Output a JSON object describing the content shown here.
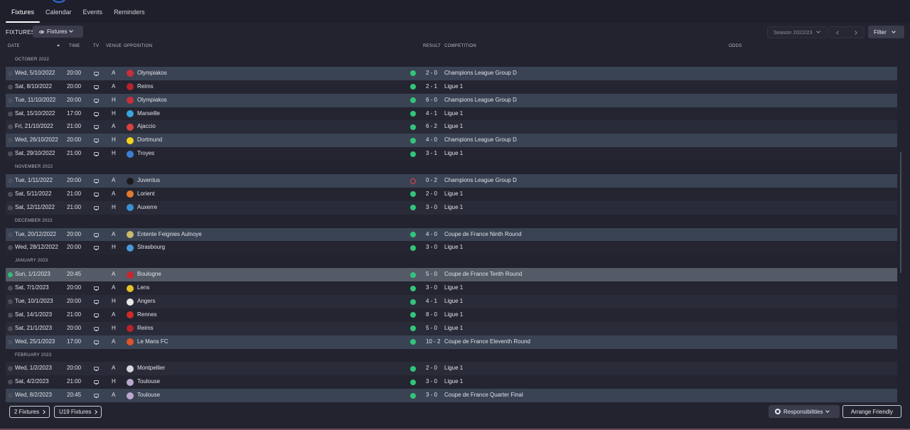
{
  "tabs": [
    {
      "label": "Fixtures",
      "active": true
    },
    {
      "label": "Calendar",
      "active": false
    },
    {
      "label": "Events",
      "active": false
    },
    {
      "label": "Reminders",
      "active": false
    }
  ],
  "toolbar": {
    "page_label": "FIXTURES",
    "view_label": "Fixtures",
    "season_label": "Season 2022/23",
    "filter_label": "Filter"
  },
  "headers": {
    "date": "DATE",
    "time": "TIME",
    "tv": "TV",
    "venue": "VENUE",
    "opposition": "OPPOSITION",
    "result": "RESULT",
    "competition": "COMPETITION",
    "odds": "ODDS"
  },
  "colors": {
    "win": "#33c47a",
    "loss": "#e0444a",
    "accent": "#2f6fd8"
  },
  "months": [
    {
      "label": "OCTOBER 2022",
      "fixtures": [
        {
          "date": "Wed, 5/10/2022",
          "time": "20:00",
          "venue": "A",
          "opposition": "Olympiakos",
          "crest": "#c8303a",
          "outcome": "win",
          "score": "2 - 0",
          "competition": "Champions League Group D",
          "style": "hl"
        },
        {
          "date": "Sat, 8/10/2022",
          "time": "20:00",
          "venue": "A",
          "opposition": "Reims",
          "crest": "#b8222c",
          "outcome": "win",
          "score": "2 - 1",
          "competition": "Ligue 1",
          "style": "even"
        },
        {
          "date": "Tue, 11/10/2022",
          "time": "20:00",
          "venue": "H",
          "opposition": "Olympiakos",
          "crest": "#c8303a",
          "outcome": "win",
          "score": "6 - 0",
          "competition": "Champions League Group D",
          "style": "hl"
        },
        {
          "date": "Sat, 15/10/2022",
          "time": "17:00",
          "venue": "H",
          "opposition": "Marseille",
          "crest": "#3aa3dc",
          "outcome": "win",
          "score": "4 - 1",
          "competition": "Ligue 1",
          "style": "even"
        },
        {
          "date": "Fri, 21/10/2022",
          "time": "21:00",
          "venue": "A",
          "opposition": "Ajaccio",
          "crest": "#d9423a",
          "outcome": "win",
          "score": "6 - 2",
          "competition": "Ligue 1",
          "style": "odd"
        },
        {
          "date": "Wed, 26/10/2022",
          "time": "20:00",
          "venue": "H",
          "opposition": "Dortmund",
          "crest": "#f1d21e",
          "outcome": "win",
          "score": "4 - 0",
          "competition": "Champions League Group D",
          "style": "hl"
        },
        {
          "date": "Sat, 29/10/2022",
          "time": "21:00",
          "venue": "H",
          "opposition": "Troyes",
          "crest": "#3b7fd0",
          "outcome": "win",
          "score": "3 - 1",
          "competition": "Ligue 1",
          "style": "even"
        }
      ]
    },
    {
      "label": "NOVEMBER 2022",
      "fixtures": [
        {
          "date": "Tue, 1/11/2022",
          "time": "20:00",
          "venue": "A",
          "opposition": "Juventus",
          "crest": "#1b1b1b",
          "outcome": "loss",
          "score": "0 - 2",
          "competition": "Champions League Group D",
          "style": "hl"
        },
        {
          "date": "Sat, 5/11/2022",
          "time": "21:00",
          "venue": "A",
          "opposition": "Lorient",
          "crest": "#e27a2d",
          "outcome": "win",
          "score": "2 - 0",
          "competition": "Ligue 1",
          "style": "even"
        },
        {
          "date": "Sat, 12/11/2022",
          "time": "21:00",
          "venue": "H",
          "opposition": "Auxerre",
          "crest": "#3a8fd4",
          "outcome": "win",
          "score": "3 - 0",
          "competition": "Ligue 1",
          "style": "odd"
        }
      ]
    },
    {
      "label": "DECEMBER 2022",
      "fixtures": [
        {
          "date": "Tue, 20/12/2022",
          "time": "20:00",
          "venue": "A",
          "opposition": "Entente Feignies Aulnoye",
          "crest": "#c9b96a",
          "outcome": "win",
          "score": "4 - 0",
          "competition": "Coupe de France Ninth Round",
          "style": "hl"
        },
        {
          "date": "Wed, 28/12/2022",
          "time": "20:00",
          "venue": "H",
          "opposition": "Strasbourg",
          "crest": "#4a9ad8",
          "outcome": "win",
          "score": "3 - 0",
          "competition": "Ligue 1",
          "style": "even"
        }
      ]
    },
    {
      "label": "JANUARY 2023",
      "fixtures": [
        {
          "date": "Sun, 1/1/2023",
          "time": "20:45",
          "venue": "A",
          "opposition": "Boulogne",
          "crest": "#c7262e",
          "outcome": "win",
          "score": "5 - 0",
          "competition": "Coupe de France Tenth Round",
          "style": "sel",
          "tv": false,
          "today": true
        },
        {
          "date": "Sat, 7/1/2023",
          "time": "20:00",
          "venue": "A",
          "opposition": "Lens",
          "crest": "#e5c22a",
          "outcome": "win",
          "score": "3 - 0",
          "competition": "Ligue 1",
          "style": "even"
        },
        {
          "date": "Tue, 10/1/2023",
          "time": "20:00",
          "venue": "H",
          "opposition": "Angers",
          "crest": "#e8e8e8",
          "outcome": "win",
          "score": "4 - 1",
          "competition": "Ligue 1",
          "style": "odd"
        },
        {
          "date": "Sat, 14/1/2023",
          "time": "21:00",
          "venue": "A",
          "opposition": "Rennes",
          "crest": "#d02a2a",
          "outcome": "win",
          "score": "8 - 0",
          "competition": "Ligue 1",
          "style": "even"
        },
        {
          "date": "Sat, 21/1/2023",
          "time": "20:00",
          "venue": "H",
          "opposition": "Reims",
          "crest": "#b8222c",
          "outcome": "win",
          "score": "5 - 0",
          "competition": "Ligue 1",
          "style": "odd"
        },
        {
          "date": "Wed, 25/1/2023",
          "time": "17:00",
          "venue": "A",
          "opposition": "Le Mans FC",
          "crest": "#e0542a",
          "outcome": "win",
          "score": "10 - 2",
          "competition": "Coupe de France Eleventh Round",
          "style": "hl"
        }
      ]
    },
    {
      "label": "FEBRUARY 2023",
      "fixtures": [
        {
          "date": "Wed, 1/2/2023",
          "time": "20:00",
          "venue": "A",
          "opposition": "Montpellier",
          "crest": "#d7d7de",
          "outcome": "win",
          "score": "2 - 0",
          "competition": "Ligue 1",
          "style": "odd"
        },
        {
          "date": "Sat, 4/2/2023",
          "time": "21:00",
          "venue": "H",
          "opposition": "Toulouse",
          "crest": "#b9a7cf",
          "outcome": "win",
          "score": "3 - 0",
          "competition": "Ligue 1",
          "style": "even"
        },
        {
          "date": "Wed, 8/2/2023",
          "time": "20:45",
          "venue": "A",
          "opposition": "Toulouse",
          "crest": "#b9a7cf",
          "outcome": "win",
          "score": "3 - 0",
          "competition": "Coupe de France Quarter Final",
          "style": "hl"
        }
      ]
    }
  ],
  "footer": {
    "fixtures_btn": "2 Fixtures",
    "u19_btn": "U19 Fixtures",
    "responsibilities": "Responsibilities",
    "arrange": "Arrange Friendly"
  }
}
